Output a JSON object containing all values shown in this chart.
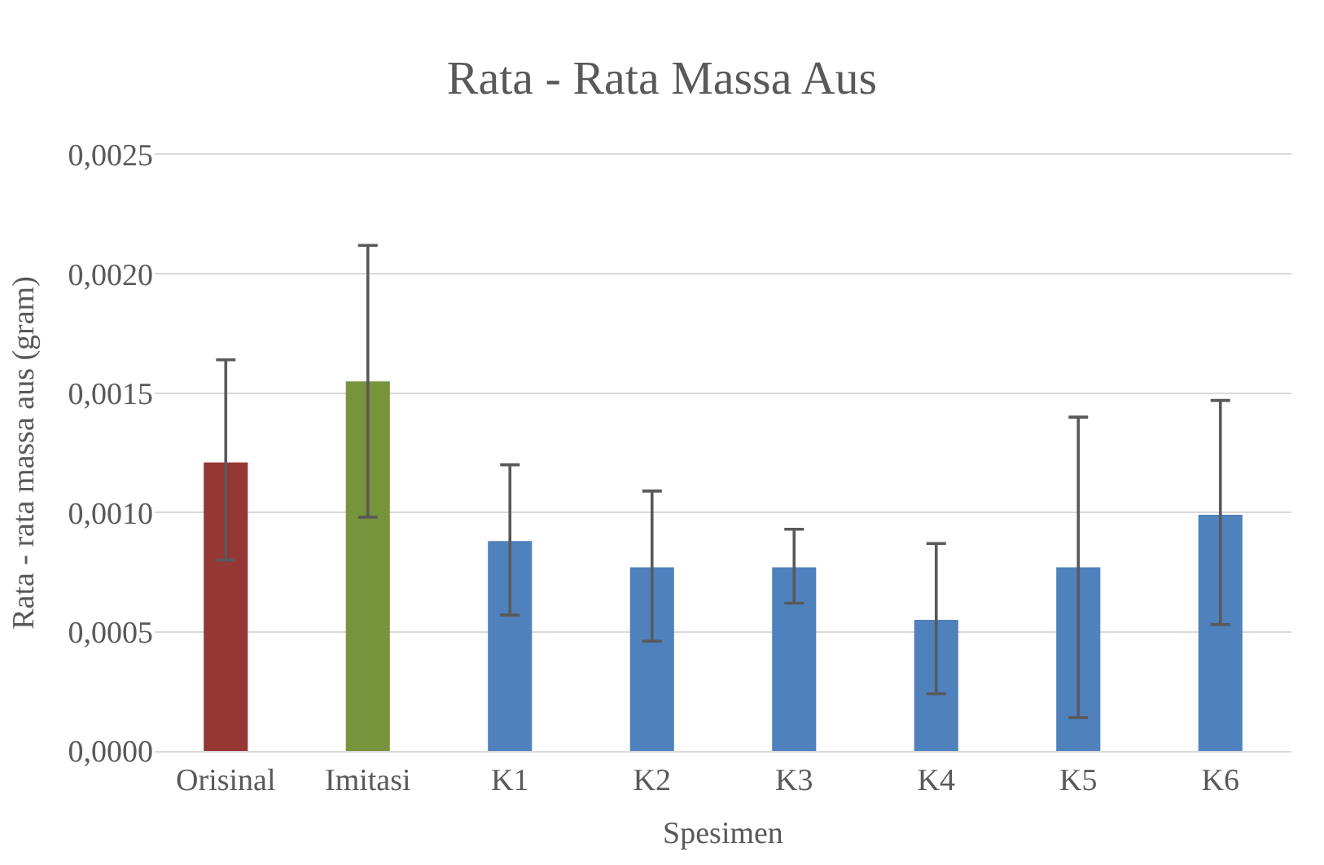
{
  "chart_data": {
    "type": "bar",
    "title": "Rata - Rata Massa Aus",
    "xlabel": "Spesimen",
    "ylabel": "Rata - rata massa aus (gram)",
    "categories": [
      "Orisinal",
      "Imitasi",
      "K1",
      "K2",
      "K3",
      "K4",
      "K5",
      "K6"
    ],
    "values": [
      0.00121,
      0.00155,
      0.00088,
      0.00077,
      0.00077,
      0.00055,
      0.00077,
      0.00099
    ],
    "colors": [
      "#953735",
      "#77933c",
      "#4f81bd",
      "#4f81bd",
      "#4f81bd",
      "#4f81bd",
      "#4f81bd",
      "#4f81bd"
    ],
    "errors": [
      [
        0.0008,
        0.00164
      ],
      [
        0.00098,
        0.00212
      ],
      [
        0.00057,
        0.0012
      ],
      [
        0.00046,
        0.00109
      ],
      [
        0.00062,
        0.00093
      ],
      [
        0.00024,
        0.00087
      ],
      [
        0.00014,
        0.0014
      ],
      [
        0.00053,
        0.00147
      ]
    ],
    "ylim": [
      0,
      0.0025
    ],
    "yticks": [
      {
        "value": 0,
        "label": "0,0000"
      },
      {
        "value": 0.0005,
        "label": "0,0005"
      },
      {
        "value": 0.001,
        "label": "0,0010"
      },
      {
        "value": 0.0015,
        "label": "0,0015"
      },
      {
        "value": 0.002,
        "label": "0,0020"
      },
      {
        "value": 0.0025,
        "label": "0,0025"
      }
    ],
    "grid": "y"
  }
}
